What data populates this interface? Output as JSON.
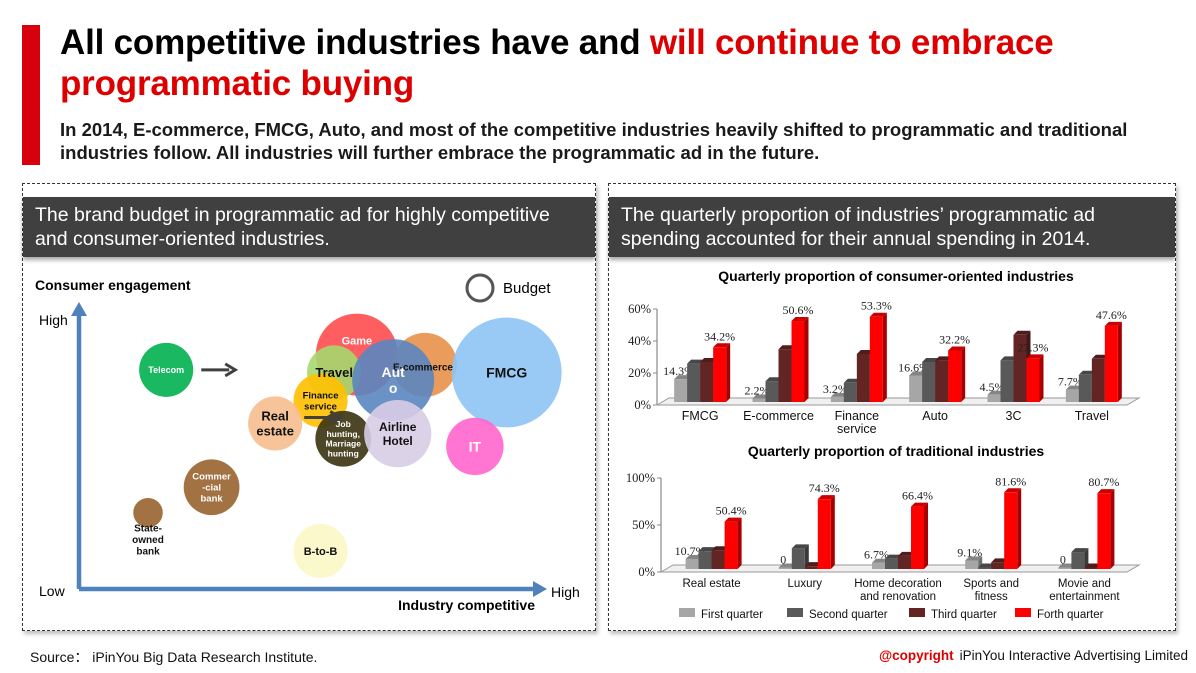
{
  "header": {
    "title_part1": "All competitive industries have and ",
    "title_part2_highlight": "will continue to embrace programmatic buying",
    "subtitle": "In 2014, E-commerce, FMCG, Auto, and most of the competitive industries heavily shifted to programmatic and traditional industries follow.  All industries will further embrace the programmatic ad in the future.",
    "accent_color": "#d9000d"
  },
  "left_panel": {
    "heading": "The brand budget in programmatic ad for highly competitive and consumer-oriented industries."
  },
  "right_panel": {
    "heading": "The quarterly proportion of industries’ programmatic ad spending accounted for their annual spending in 2014."
  },
  "footer": {
    "source": "Source： iPinYou Big Data Research Institute.",
    "copyright_label": "@copyright",
    "copyright_owner": "iPinYou Interactive Advertising Limited"
  },
  "chart_data": [
    {
      "type": "scatter",
      "subtype": "bubble",
      "title": "",
      "ylabel": "Consumer engagement",
      "xlabel": "Industry competitive",
      "y_axis_labels": {
        "low": "Low",
        "high": "High"
      },
      "x_axis_labels": {
        "low": "Low",
        "high": "High"
      },
      "legend": {
        "label": "Budget",
        "placement": "top-right",
        "meaning": "bubble size = budget"
      },
      "grid": false,
      "xlim": [
        0,
        100
      ],
      "ylim": [
        0,
        100
      ],
      "points": [
        {
          "label": "Telecom",
          "x": 17,
          "y": 82,
          "size": 33,
          "color": "#00b050",
          "text_color": "#ffffff"
        },
        {
          "label": "Game",
          "x": 59,
          "y": 88,
          "size": 50,
          "color": "#ff4d4f",
          "text_color": "#ffffff"
        },
        {
          "label": "E-commerce",
          "x": 74,
          "y": 84,
          "size": 39,
          "color": "#e8914a",
          "text_color": "#111111"
        },
        {
          "label": "FMCG",
          "x": 92,
          "y": 81,
          "size": 67,
          "color": "#8ec4f5",
          "text_color": "#111111"
        },
        {
          "label": "Travel",
          "x": 54,
          "y": 81,
          "size": 33,
          "color": "#a6d86e",
          "text_color": "#111111"
        },
        {
          "label": "Aut o",
          "x": 67,
          "y": 78,
          "size": 50,
          "color": "#5b86c0",
          "text_color": "#ffffff"
        },
        {
          "label": "Finance service",
          "x": 51,
          "y": 70,
          "size": 33,
          "color": "#ffc000",
          "text_color": "#111111"
        },
        {
          "label": "Real estate",
          "x": 41,
          "y": 61,
          "size": 33,
          "color": "#f6be8f",
          "text_color": "#111111"
        },
        {
          "label": "Job hunting, Marriage hunting",
          "x": 56,
          "y": 55,
          "size": 34,
          "color": "#3a3311",
          "text_color": "#ffffff"
        },
        {
          "label": "Airline Hotel",
          "x": 68,
          "y": 57,
          "size": 41,
          "color": "#d8cde6",
          "text_color": "#111111"
        },
        {
          "label": "IT",
          "x": 85,
          "y": 52,
          "size": 35,
          "color": "#ff66cc",
          "text_color": "#ffffff"
        },
        {
          "label": "Commer -cial bank",
          "x": 27,
          "y": 36,
          "size": 34,
          "color": "#99632f",
          "text_color": "#ffffff"
        },
        {
          "label": "State-owned bank",
          "x": 13,
          "y": 26,
          "size": 18,
          "color": "#99632f",
          "text_color": "#111111"
        },
        {
          "label": "B-to-B",
          "x": 51,
          "y": 11,
          "size": 33,
          "color": "#fbf8c6",
          "text_color": "#111111"
        }
      ],
      "arrows": [
        {
          "from": "Telecom",
          "direction": "right"
        },
        {
          "from": "Real estate",
          "direction": "right"
        }
      ]
    },
    {
      "type": "bar",
      "subtype": "3d-grouped",
      "title": "Quarterly proportion of consumer-oriented industries",
      "xlabel": "",
      "ylabel": "",
      "ylim": [
        0,
        60
      ],
      "yticks": [
        "0%",
        "20%",
        "40%",
        "60%"
      ],
      "categories": [
        "FMCG",
        "E-commerce",
        "Finance service",
        "Auto",
        "3C",
        "Travel"
      ],
      "series": [
        {
          "name": "First quarter",
          "color": "#a6a6a6",
          "values": [
            14.3,
            2.2,
            3.2,
            16.6,
            4.5,
            7.7
          ]
        },
        {
          "name": "Second quarter",
          "color": "#595959",
          "values": [
            24,
            13,
            12,
            25,
            26,
            17
          ]
        },
        {
          "name": "Third quarter",
          "color": "#632523",
          "values": [
            25,
            33,
            30,
            26,
            42,
            27
          ]
        },
        {
          "name": "Forth quarter",
          "color": "#ff0000",
          "values": [
            34.2,
            50.6,
            53.3,
            32.2,
            27.3,
            47.6
          ]
        }
      ],
      "data_labels": {
        "First quarter": [
          "14.3%",
          "2.2%",
          "3.2%",
          "16.6%",
          "4.5%",
          "7.7%"
        ],
        "Forth quarter": [
          "34.2%",
          "50.6%",
          "53.3%",
          "32.2%",
          "27.3%",
          "47.6%"
        ]
      }
    },
    {
      "type": "bar",
      "subtype": "3d-grouped",
      "title": "Quarterly proportion of traditional industries",
      "xlabel": "",
      "ylabel": "",
      "ylim": [
        0,
        100
      ],
      "yticks": [
        "0%",
        "50%",
        "100%"
      ],
      "categories": [
        "Real estate",
        "Luxury",
        "Home decoration and renovation",
        "Sports and fitness",
        "Movie and entertainment"
      ],
      "series": [
        {
          "name": "First quarter",
          "color": "#a6a6a6",
          "values": [
            10.7,
            0,
            6.7,
            9.1,
            0
          ]
        },
        {
          "name": "Second quarter",
          "color": "#595959",
          "values": [
            19,
            22,
            11,
            1,
            18
          ]
        },
        {
          "name": "Third quarter",
          "color": "#632523",
          "values": [
            20,
            3,
            14,
            7,
            1
          ]
        },
        {
          "name": "Forth quarter",
          "color": "#ff0000",
          "values": [
            50.4,
            74.3,
            66.4,
            81.6,
            80.7
          ]
        }
      ],
      "data_labels": {
        "First quarter": [
          "10.7%",
          "0",
          "6.7%",
          "9.1%",
          "0"
        ],
        "Forth quarter": [
          "50.4%",
          "74.3%",
          "66.4%",
          "81.6%",
          "80.7%"
        ]
      },
      "legend": {
        "placement": "bottom",
        "entries": [
          "First quarter",
          "Second quarter",
          "Third quarter",
          "Forth quarter"
        ]
      }
    }
  ]
}
